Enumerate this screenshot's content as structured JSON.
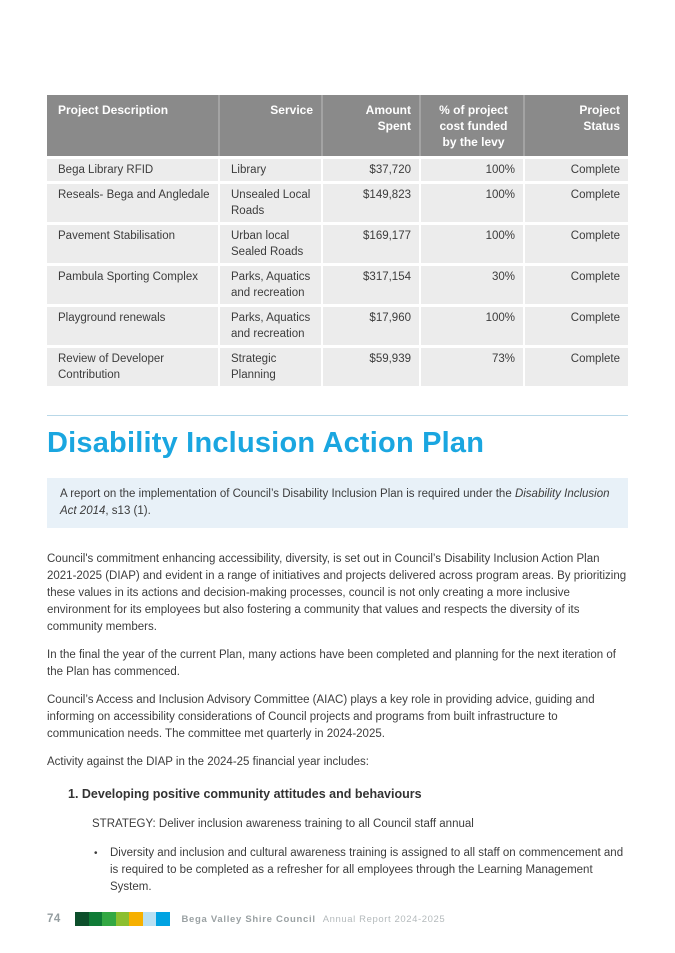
{
  "colors": {
    "accent": "#1aa6e0",
    "table_header_bg": "#8a8a8a",
    "table_row_bg": "#ececec",
    "callout_bg": "#e8f1f8",
    "rule": "#b9d8e8",
    "body_text": "#3d3d3d"
  },
  "levy_table": {
    "headers": [
      "Project Description",
      "Service",
      "Amount\nSpent",
      "% of project\ncost funded\nby the levy",
      "Project\nStatus"
    ],
    "rows": [
      [
        "Bega Library RFID",
        "Library",
        "$37,720",
        "100%",
        "Complete"
      ],
      [
        "Reseals- Bega and Angledale",
        "Unsealed Local Roads",
        "$149,823",
        "100%",
        "Complete"
      ],
      [
        "Pavement Stabilisation",
        "Urban local Sealed Roads",
        "$169,177",
        "100%",
        "Complete"
      ],
      [
        "Pambula Sporting Complex",
        "Parks, Aquatics and recreation",
        "$317,154",
        "30%",
        "Complete"
      ],
      [
        "Playground renewals",
        "Parks, Aquatics and recreation",
        "$17,960",
        "100%",
        "Complete"
      ],
      [
        "Review of Developer Contribution",
        "Strategic Planning",
        "$59,939",
        "73%",
        "Complete"
      ]
    ]
  },
  "section": {
    "title": "Disability Inclusion Action Plan",
    "callout": {
      "pre": "A report on the implementation of Council’s Disability Inclusion Plan is required under the ",
      "italic": "Disability Inclusion Act 2014",
      "post": ", s13 (1)."
    },
    "paragraphs": [
      "Council's commitment enhancing accessibility, diversity, is set out in Council’s Disability Inclusion Action Plan 2021-2025 (DIAP) and evident in a range of initiatives and projects delivered across program areas. By prioritizing these values in its actions and decision-making processes, council is not only creating a more inclusive environment for its employees but also fostering a community that values and respects the diversity of its community members.",
      "In the final the year of the current Plan, many actions have been completed and planning for the next iteration of the Plan has commenced.",
      "Council’s Access and Inclusion Advisory Committee (AIAC) plays a key role in providing advice, guiding and informing on accessibility considerations of Council projects and programs from built infrastructure to communication needs. The committee met quarterly in 2024-2025.",
      "Activity against the DIAP in the 2024-25 financial year includes:"
    ],
    "subsection": {
      "heading": "1. Developing positive community attitudes and behaviours",
      "strategy": "STRATEGY: Deliver inclusion awareness training to all Council staff annual",
      "bullet_glyph": "•",
      "bullets": [
        "Diversity and inclusion and cultural awareness training is assigned to all staff on commencement and is required to be completed as a refresher for all employees through the Learning Management System."
      ]
    }
  },
  "footer": {
    "page_number": "74",
    "brand": "Bega Valley Shire Council",
    "report": "Annual Report 2024-2025",
    "squares": [
      "#0d4f2b",
      "#0f7b36",
      "#33a843",
      "#8cbf2f",
      "#f6b000",
      "#b8e0f3",
      "#00a3e2"
    ]
  }
}
